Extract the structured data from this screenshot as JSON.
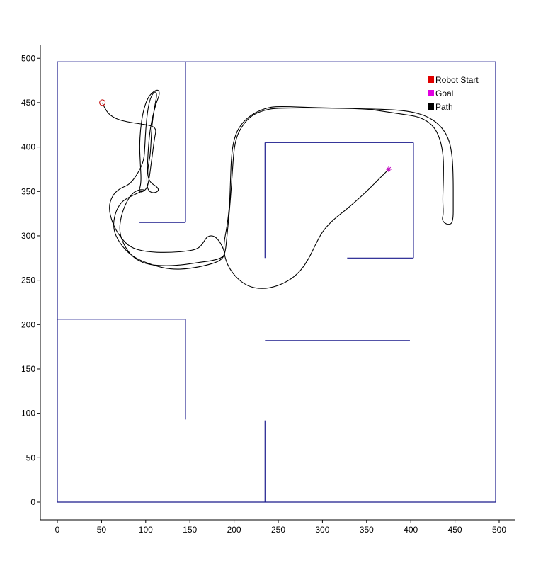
{
  "chart_data": {
    "type": "line",
    "title": "",
    "xlabel": "",
    "ylabel": "",
    "xlim": [
      -20,
      515
    ],
    "ylim": [
      -20,
      515
    ],
    "x_ticks": [
      0,
      50,
      100,
      150,
      200,
      250,
      300,
      350,
      400,
      450,
      500
    ],
    "y_ticks": [
      0,
      50,
      100,
      150,
      200,
      250,
      300,
      350,
      400,
      450,
      500
    ],
    "grid": false,
    "legend": {
      "placement": "top-right",
      "entries": [
        {
          "label": "Robot Start",
          "color": "#e00000"
        },
        {
          "label": "Goal",
          "color": "#e000e0"
        },
        {
          "label": "Path",
          "color": "#000000"
        }
      ]
    },
    "walls_color": "#1a1a8c",
    "walls": [
      [
        [
          0,
          0
        ],
        [
          496,
          0
        ]
      ],
      [
        [
          496,
          0
        ],
        [
          496,
          496
        ]
      ],
      [
        [
          496,
          496
        ],
        [
          0,
          496
        ]
      ],
      [
        [
          0,
          496
        ],
        [
          0,
          0
        ]
      ],
      [
        [
          145,
          496
        ],
        [
          145,
          315
        ]
      ],
      [
        [
          145,
          315
        ],
        [
          93,
          315
        ]
      ],
      [
        [
          235,
          275
        ],
        [
          235,
          405
        ]
      ],
      [
        [
          235,
          405
        ],
        [
          403,
          405
        ]
      ],
      [
        [
          403,
          405
        ],
        [
          403,
          275
        ]
      ],
      [
        [
          403,
          275
        ],
        [
          328,
          275
        ]
      ],
      [
        [
          0,
          206
        ],
        [
          145,
          206
        ]
      ],
      [
        [
          145,
          206
        ],
        [
          145,
          93
        ]
      ],
      [
        [
          235,
          182
        ],
        [
          399,
          182
        ]
      ],
      [
        [
          235,
          0
        ],
        [
          235,
          92
        ]
      ]
    ],
    "robot_start": {
      "x": 51,
      "y": 450,
      "color": "#c00000"
    },
    "goal": {
      "x": 375,
      "y": 375,
      "color": "#c000c0"
    },
    "path": [
      [
        51,
        450
      ],
      [
        55,
        440
      ],
      [
        65,
        432
      ],
      [
        80,
        428
      ],
      [
        95,
        426
      ],
      [
        107,
        424
      ],
      [
        112,
        420
      ],
      [
        110,
        410
      ],
      [
        108,
        395
      ],
      [
        106,
        380
      ],
      [
        104,
        365
      ],
      [
        102,
        355
      ],
      [
        98,
        350
      ],
      [
        92,
        349
      ],
      [
        95,
        360
      ],
      [
        94,
        380
      ],
      [
        93,
        400
      ],
      [
        94,
        420
      ],
      [
        97,
        440
      ],
      [
        102,
        455
      ],
      [
        108,
        462
      ],
      [
        114,
        465
      ],
      [
        116,
        460
      ],
      [
        112,
        450
      ],
      [
        108,
        435
      ],
      [
        105,
        420
      ],
      [
        103,
        400
      ],
      [
        102,
        380
      ],
      [
        101,
        360
      ],
      [
        103,
        350
      ],
      [
        110,
        348
      ],
      [
        115,
        351
      ],
      [
        113,
        355
      ],
      [
        108,
        358
      ],
      [
        104,
        362
      ],
      [
        102,
        370
      ],
      [
        103,
        380
      ],
      [
        105,
        390
      ],
      [
        106,
        405
      ],
      [
        107,
        425
      ],
      [
        110,
        445
      ],
      [
        113,
        460
      ],
      [
        110,
        463
      ],
      [
        105,
        455
      ],
      [
        102,
        440
      ],
      [
        100,
        420
      ],
      [
        99,
        400
      ],
      [
        98,
        385
      ],
      [
        92,
        372
      ],
      [
        86,
        363
      ],
      [
        80,
        357
      ],
      [
        70,
        353
      ],
      [
        62,
        345
      ],
      [
        58,
        332
      ],
      [
        62,
        315
      ],
      [
        70,
        300
      ],
      [
        82,
        287
      ],
      [
        100,
        282
      ],
      [
        125,
        281
      ],
      [
        150,
        283
      ],
      [
        160,
        286
      ],
      [
        165,
        292
      ],
      [
        170,
        300
      ],
      [
        178,
        300
      ],
      [
        185,
        292
      ],
      [
        190,
        280
      ],
      [
        186,
        275
      ],
      [
        175,
        272
      ],
      [
        160,
        270
      ],
      [
        140,
        267
      ],
      [
        120,
        266
      ],
      [
        100,
        268
      ],
      [
        85,
        276
      ],
      [
        75,
        290
      ],
      [
        70,
        305
      ],
      [
        72,
        322
      ],
      [
        78,
        338
      ],
      [
        85,
        348
      ],
      [
        92,
        352
      ],
      [
        100,
        352
      ],
      [
        93,
        349
      ],
      [
        82,
        344
      ],
      [
        72,
        338
      ],
      [
        65,
        325
      ],
      [
        63,
        308
      ],
      [
        70,
        292
      ],
      [
        85,
        276
      ],
      [
        110,
        266
      ],
      [
        130,
        262
      ],
      [
        150,
        263
      ],
      [
        170,
        267
      ],
      [
        185,
        272
      ],
      [
        190,
        280
      ],
      [
        192,
        300
      ],
      [
        195,
        330
      ],
      [
        198,
        370
      ],
      [
        200,
        400
      ],
      [
        205,
        418
      ],
      [
        218,
        435
      ],
      [
        235,
        442
      ],
      [
        250,
        444
      ],
      [
        300,
        444
      ],
      [
        350,
        443
      ],
      [
        370,
        440
      ],
      [
        390,
        437
      ],
      [
        410,
        434
      ],
      [
        425,
        425
      ],
      [
        433,
        410
      ],
      [
        437,
        390
      ],
      [
        437,
        365
      ],
      [
        436,
        340
      ],
      [
        437,
        325
      ],
      [
        435,
        317
      ],
      [
        442,
        312
      ],
      [
        448,
        315
      ],
      [
        448,
        340
      ],
      [
        448,
        365
      ],
      [
        447,
        390
      ],
      [
        443,
        410
      ],
      [
        433,
        425
      ],
      [
        418,
        435
      ],
      [
        400,
        440
      ],
      [
        380,
        442
      ],
      [
        352,
        443
      ],
      [
        300,
        444
      ],
      [
        250,
        446
      ],
      [
        236,
        444
      ],
      [
        220,
        437
      ],
      [
        207,
        425
      ],
      [
        200,
        410
      ],
      [
        197,
        390
      ],
      [
        196,
        365
      ],
      [
        195,
        335
      ],
      [
        192,
        310
      ],
      [
        188,
        290
      ],
      [
        190,
        272
      ],
      [
        200,
        255
      ],
      [
        215,
        243
      ],
      [
        232,
        240
      ],
      [
        248,
        243
      ],
      [
        263,
        250
      ],
      [
        275,
        260
      ],
      [
        285,
        275
      ],
      [
        292,
        290
      ],
      [
        300,
        305
      ],
      [
        312,
        318
      ],
      [
        330,
        332
      ],
      [
        350,
        350
      ],
      [
        365,
        365
      ],
      [
        375,
        375
      ]
    ]
  }
}
